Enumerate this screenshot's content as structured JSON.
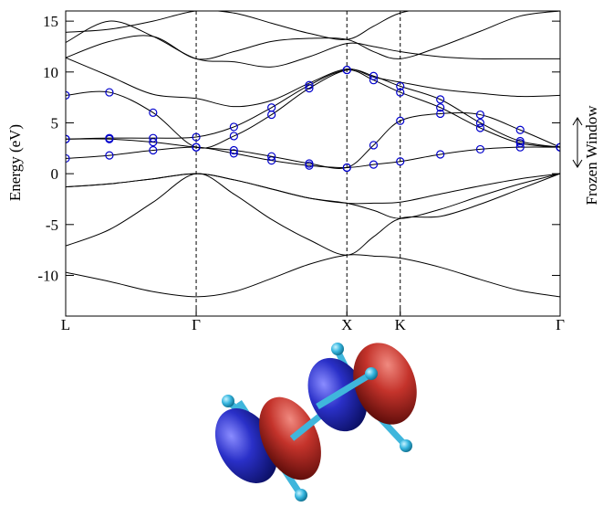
{
  "chart_data": {
    "type": "line",
    "ylabel": "Energy (eV)",
    "annotation": "Frozen Window",
    "x": [
      0,
      0.29,
      0.58,
      0.866,
      1.116,
      1.366,
      1.616,
      1.866,
      2.043,
      2.22,
      2.486,
      2.751,
      3.016,
      3.281
    ],
    "xlim": [
      0,
      3.281
    ],
    "xticks": [
      {
        "value": 0,
        "label": "L"
      },
      {
        "value": 0.866,
        "label": "Γ"
      },
      {
        "value": 1.866,
        "label": "X"
      },
      {
        "value": 2.22,
        "label": "K"
      },
      {
        "value": 3.281,
        "label": "Γ"
      }
    ],
    "ylim": [
      -14,
      16
    ],
    "yticks": [
      15,
      10,
      5,
      0,
      -5,
      -10
    ],
    "xgrid": true,
    "series": [
      {
        "color": "#000000",
        "values": [
          -9.7,
          -10.6,
          -11.6,
          -12.1,
          -11.6,
          -10.3,
          -8.9,
          -8.0,
          -8.1,
          -8.3,
          -9.2,
          -10.4,
          -11.5,
          -12.1
        ]
      },
      {
        "color": "#000000",
        "values": [
          -7.1,
          -5.5,
          -2.8,
          0,
          -2.0,
          -4.5,
          -6.5,
          -8.0,
          -6.2,
          -4.4,
          -4.2,
          -3.0,
          -1.5,
          0
        ]
      },
      {
        "color": "#000000",
        "values": [
          -1.3,
          -1.0,
          -0.5,
          0,
          -0.6,
          -1.5,
          -2.4,
          -2.9,
          -2.9,
          -2.8,
          -2.0,
          -1.2,
          -0.5,
          0
        ]
      },
      {
        "color": "#000000",
        "values": [
          -1.3,
          -1.0,
          -0.5,
          0,
          -0.6,
          -1.5,
          -2.4,
          -2.9,
          -3.6,
          -4.4,
          -3.5,
          -2.2,
          -1.0,
          0
        ]
      },
      {
        "color": "#000000",
        "values": [
          11.4,
          9.6,
          7.8,
          7.4,
          6.6,
          7.2,
          8.9,
          10.3,
          9.5,
          9.0,
          8.3,
          7.9,
          7.6,
          7.7
        ]
      },
      {
        "color": "#000000",
        "values": [
          12.9,
          15.0,
          13.5,
          11.3,
          11.0,
          10.5,
          11.5,
          12.8,
          12.5,
          12.0,
          11.5,
          11.3,
          11.3,
          11.3
        ]
      },
      {
        "color": "#000000",
        "values": [
          11.4,
          13.0,
          13.5,
          11.3,
          12.0,
          13.0,
          13.3,
          13.2,
          12.0,
          11.3,
          12.5,
          14.0,
          15.5,
          16.0
        ]
      },
      {
        "color": "#000000",
        "values": [
          13.9,
          14.2,
          15.0,
          16.0,
          15.8,
          14.8,
          13.8,
          13.2,
          14.5,
          15.8,
          16.5,
          17.0,
          16.5,
          16.0
        ]
      },
      {
        "color": "#0000cc",
        "marker": "circle",
        "values": [
          1.5,
          1.8,
          2.3,
          2.6,
          2.0,
          1.3,
          0.8,
          0.6,
          0.9,
          1.2,
          1.9,
          2.4,
          2.6,
          2.6
        ]
      },
      {
        "color": "#0000cc",
        "marker": "circle",
        "values": [
          3.4,
          3.4,
          3.1,
          2.6,
          2.3,
          1.7,
          1.0,
          0.6,
          2.8,
          5.2,
          5.9,
          5.8,
          4.3,
          2.6
        ]
      },
      {
        "color": "#0000cc",
        "marker": "circle",
        "values": [
          3.4,
          3.5,
          3.5,
          3.6,
          4.6,
          6.5,
          8.7,
          10.2,
          9.2,
          8.0,
          6.5,
          4.5,
          3.0,
          2.6
        ]
      },
      {
        "color": "#0000cc",
        "marker": "circle",
        "values": [
          7.7,
          8.0,
          6.0,
          2.6,
          3.7,
          5.8,
          8.4,
          10.2,
          9.6,
          8.6,
          7.3,
          5.0,
          3.2,
          2.6
        ]
      }
    ]
  }
}
